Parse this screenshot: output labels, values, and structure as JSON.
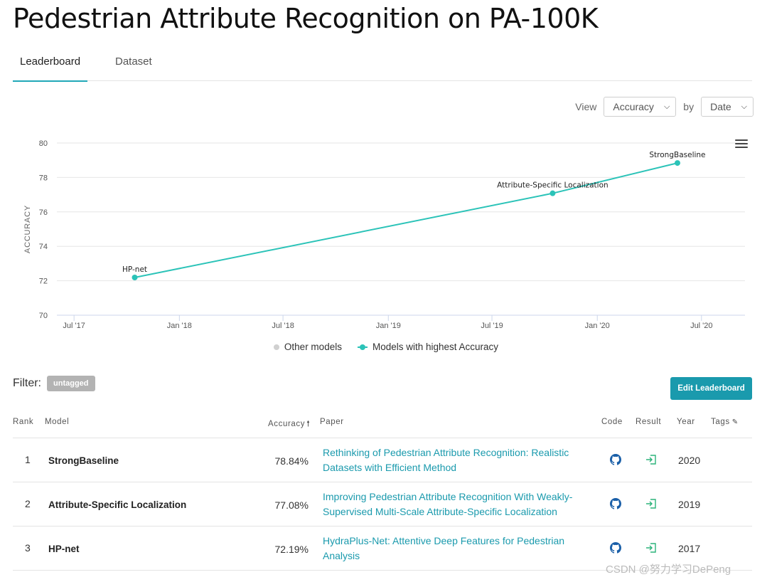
{
  "page": {
    "title": "Pedestrian Attribute Recognition on PA-100K",
    "tabs": [
      {
        "label": "Leaderboard"
      },
      {
        "label": "Dataset"
      }
    ]
  },
  "view": {
    "view_label": "View",
    "metric": "Accuracy",
    "by_label": "by",
    "sort_by": "Date"
  },
  "legend": {
    "other": "Other models",
    "highest": "Models with highest Accuracy"
  },
  "filter": {
    "label": "Filter:",
    "tag": "untagged"
  },
  "edit_button": "Edit Leaderboard",
  "table": {
    "headers": {
      "rank": "Rank",
      "model": "Model",
      "accuracy": "Accuracy",
      "paper": "Paper",
      "code": "Code",
      "result": "Result",
      "year": "Year",
      "tags": "Tags"
    },
    "rows": [
      {
        "rank": "1",
        "model": "StrongBaseline",
        "accuracy": "78.84%",
        "paper": "Rethinking of Pedestrian Attribute Recognition: Realistic Datasets with Efficient Method",
        "year": "2020"
      },
      {
        "rank": "2",
        "model": "Attribute-Specific Localization",
        "accuracy": "77.08%",
        "paper": "Improving Pedestrian Attribute Recognition With Weakly-Supervised Multi-Scale Attribute-Specific Localization",
        "year": "2019"
      },
      {
        "rank": "3",
        "model": "HP-net",
        "accuracy": "72.19%",
        "paper": "HydraPlus-Net: Attentive Deep Features for Pedestrian Analysis",
        "year": "2017"
      }
    ]
  },
  "watermark": "CSDN @努力学习DePeng",
  "colors": {
    "accent": "#1a9aad",
    "line": "#2bc3b8",
    "other": "#d0d0d0"
  },
  "icons": {
    "code": "github-icon",
    "result": "import-result-icon",
    "menu": "hamburger-menu-icon"
  },
  "chart_data": {
    "type": "line",
    "ylabel": "ACCURACY",
    "xlabel": "",
    "ylim": [
      70,
      80
    ],
    "yticks": [
      "70",
      "72",
      "74",
      "76",
      "78",
      "80"
    ],
    "xticks": [
      "Jul '17",
      "Jan '18",
      "Jul '18",
      "Jan '19",
      "Jul '19",
      "Jan '20",
      "Jul '20"
    ],
    "xtick_dates": [
      "2017-07-01",
      "2018-01-01",
      "2018-07-01",
      "2019-01-01",
      "2019-07-01",
      "2020-01-01",
      "2020-07-01"
    ],
    "xlim": [
      "2017-06-01",
      "2020-09-15"
    ],
    "grid": true,
    "series": [
      {
        "name": "Models with highest Accuracy",
        "points": [
          {
            "label": "HP-net",
            "x": "2017-10-15",
            "y": 72.19
          },
          {
            "label": "Attribute-Specific Localization",
            "x": "2019-10-15",
            "y": 77.08
          },
          {
            "label": "StrongBaseline",
            "x": "2020-05-20",
            "y": 78.84
          }
        ]
      }
    ]
  }
}
